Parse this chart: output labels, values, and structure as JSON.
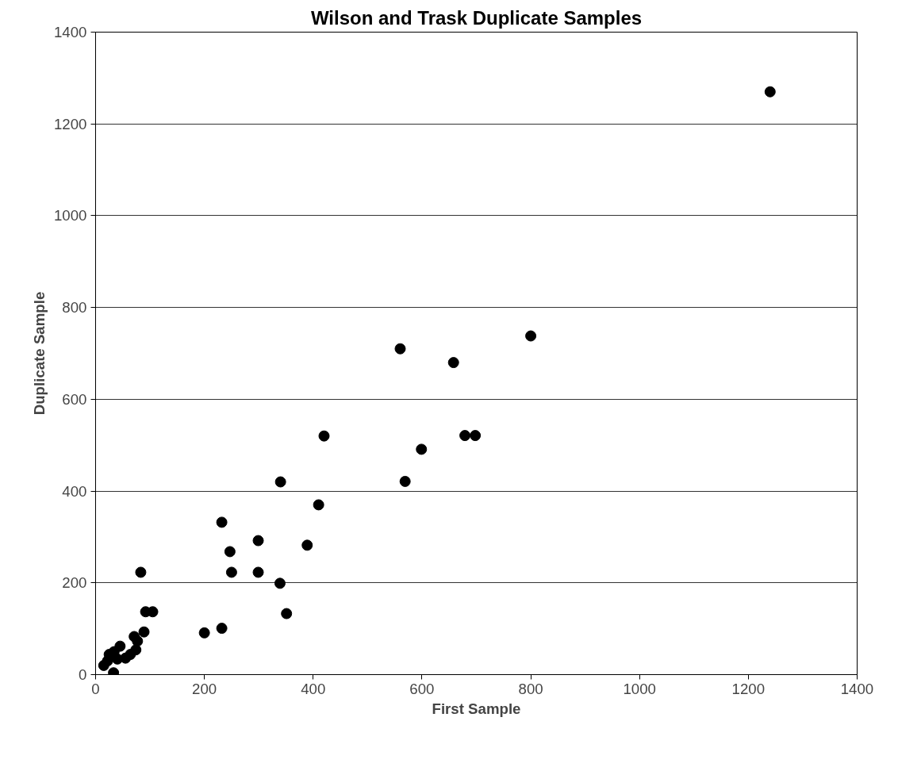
{
  "chart_data": {
    "type": "scatter",
    "title": "Wilson and Trask Duplicate Samples",
    "xlabel": "First Sample",
    "ylabel": "Duplicate Sample",
    "x": [
      15,
      22,
      25,
      33,
      34,
      40,
      45,
      55,
      64,
      71,
      74,
      77,
      83,
      89,
      92,
      105,
      200,
      232,
      232,
      247,
      250,
      299,
      299,
      339,
      340,
      351,
      389,
      410,
      420,
      560,
      569,
      599,
      658,
      679,
      698,
      800,
      1240
    ],
    "values": [
      20,
      30,
      44,
      4,
      50,
      34,
      62,
      36,
      44,
      83,
      54,
      73,
      223,
      93,
      137,
      137,
      91,
      101,
      332,
      268,
      223,
      292,
      223,
      199,
      420,
      133,
      282,
      370,
      520,
      710,
      421,
      491,
      680,
      521,
      521,
      738,
      1270
    ],
    "color": "#000000",
    "marker": "circle",
    "xlim": [
      0,
      1400
    ],
    "xticks": [
      0,
      200,
      400,
      600,
      800,
      1000,
      1200,
      1400
    ],
    "ylim": [
      0,
      1400
    ],
    "yticks": [
      0,
      200,
      400,
      600,
      800,
      1000,
      1200,
      1400
    ],
    "grid": "y"
  }
}
